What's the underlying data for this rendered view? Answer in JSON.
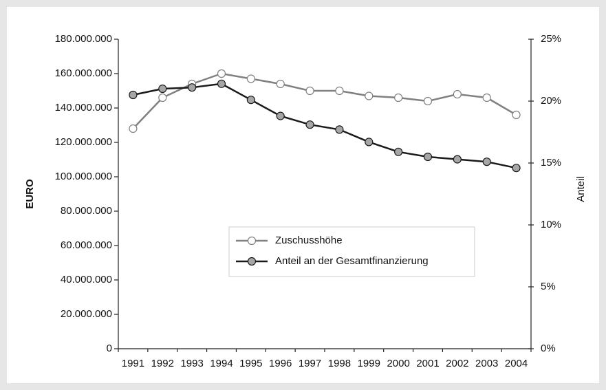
{
  "chart_data": {
    "type": "line",
    "categories": [
      "1991",
      "1992",
      "1993",
      "1994",
      "1995",
      "1996",
      "1997",
      "1998",
      "1999",
      "2000",
      "2001",
      "2002",
      "2003",
      "2004"
    ],
    "series": [
      {
        "name": "Zuschusshöhe",
        "color": "#808080",
        "marker_fill": "#ffffff",
        "values": [
          128000000,
          146000000,
          154000000,
          160000000,
          157000000,
          154000000,
          150000000,
          150000000,
          147000000,
          146000000,
          144000000,
          148000000,
          146000000,
          136000000
        ]
      },
      {
        "name": "Anteil an der Gesamtfinanzierung",
        "color": "#1a1a1a",
        "marker_fill": "#a6a6a6",
        "axis": "y2",
        "values": [
          20.5,
          21.0,
          21.1,
          21.4,
          20.1,
          18.8,
          18.1,
          17.7,
          16.7,
          15.9,
          15.5,
          15.3,
          15.1,
          14.6
        ]
      }
    ],
    "ylabel": "EURO",
    "y2label": "Anteil",
    "ylim": [
      0,
      180000000
    ],
    "yticks": [
      {
        "value": 0,
        "label": "0"
      },
      {
        "value": 20000000,
        "label": "20.000.000"
      },
      {
        "value": 40000000,
        "label": "40.000.000"
      },
      {
        "value": 60000000,
        "label": "60.000.000"
      },
      {
        "value": 80000000,
        "label": "80.000.000"
      },
      {
        "value": 100000000,
        "label": "100.000.000"
      },
      {
        "value": 120000000,
        "label": "120.000.000"
      },
      {
        "value": 140000000,
        "label": "140.000.000"
      },
      {
        "value": 160000000,
        "label": "160.000.000"
      },
      {
        "value": 180000000,
        "label": "180.000.000"
      }
    ],
    "y2lim": [
      0,
      25
    ],
    "y2ticks": [
      {
        "value": 0,
        "label": "0%"
      },
      {
        "value": 5,
        "label": "5%"
      },
      {
        "value": 10,
        "label": "10%"
      },
      {
        "value": 15,
        "label": "15%"
      },
      {
        "value": 20,
        "label": "20%"
      },
      {
        "value": 25,
        "label": "25%"
      }
    ]
  }
}
